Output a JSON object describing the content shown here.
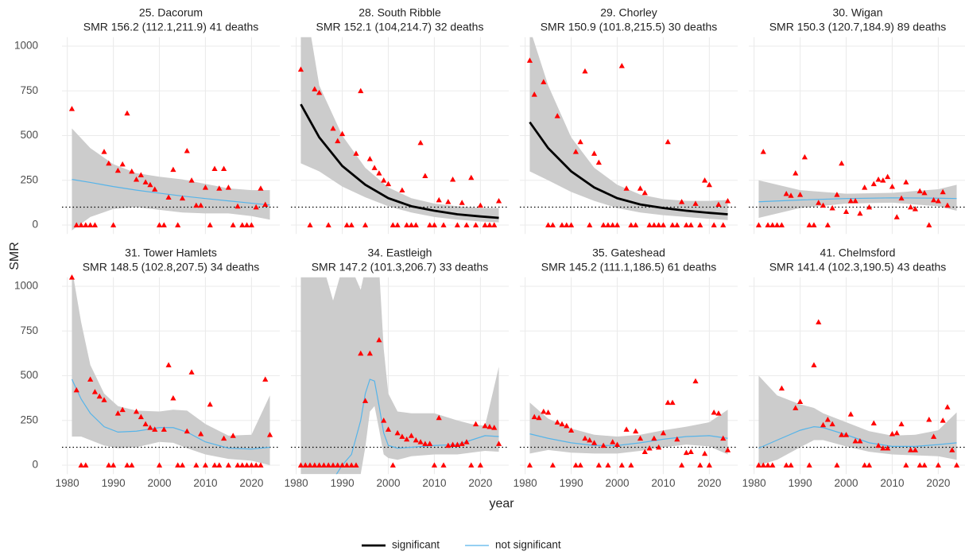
{
  "axes": {
    "xlabel": "year",
    "ylabel": "SMR",
    "xlim": [
      1978.85,
      2026.15
    ],
    "ylim": [
      -50,
      1050
    ],
    "xticks": [
      1980,
      1990,
      2000,
      2010,
      2020
    ],
    "yticks": [
      0,
      250,
      500,
      750,
      1000
    ],
    "reference_line": 100,
    "point_color": "#ff0000",
    "ribbon_color": "#cccccc",
    "grid_color": "#ebebeb"
  },
  "legend": [
    {
      "name": "significant",
      "color": "#000000"
    },
    {
      "name": "not significant",
      "color": "#56b4e9"
    }
  ],
  "chart_data": [
    {
      "type": "scatter",
      "title": "25. Dacorum",
      "subtitle": "SMR 156.2 (112.1,211.9) 41 deaths",
      "significant": false,
      "x": [
        1981,
        1982,
        1983,
        1984,
        1985,
        1986,
        1988,
        1989,
        1990,
        1991,
        1992,
        1993,
        1994,
        1995,
        1996,
        1997,
        1998,
        1999,
        2000,
        2001,
        2002,
        2003,
        2004,
        2005,
        2006,
        2007,
        2008,
        2009,
        2010,
        2011,
        2012,
        2013,
        2014,
        2015,
        2016,
        2017,
        2018,
        2019,
        2020,
        2021,
        2022,
        2023
      ],
      "values": [
        650,
        0,
        0,
        0,
        0,
        0,
        410,
        345,
        0,
        305,
        340,
        625,
        300,
        255,
        280,
        240,
        225,
        200,
        0,
        0,
        155,
        310,
        0,
        150,
        415,
        250,
        110,
        110,
        210,
        0,
        315,
        205,
        315,
        210,
        0,
        105,
        0,
        0,
        0,
        100,
        205,
        115
      ],
      "fit": {
        "x": [
          1981,
          1985,
          1990,
          1995,
          2000,
          2005,
          2010,
          2015,
          2020,
          2024
        ],
        "values": [
          255,
          238,
          215,
          195,
          178,
          162,
          148,
          135,
          122,
          112
        ],
        "upper": [
          540,
          430,
          340,
          290,
          270,
          255,
          230,
          205,
          195,
          195
        ],
        "lower": [
          -30,
          45,
          90,
          100,
          85,
          70,
          65,
          65,
          50,
          30
        ]
      }
    },
    {
      "type": "scatter",
      "title": "28. South Ribble",
      "subtitle": "SMR 152.1 (104,214.7) 32 deaths",
      "significant": true,
      "x": [
        1981,
        1983,
        1984,
        1985,
        1987,
        1988,
        1989,
        1990,
        1991,
        1992,
        1993,
        1994,
        1995,
        1996,
        1997,
        1998,
        1999,
        2000,
        2001,
        2002,
        2003,
        2004,
        2005,
        2006,
        2007,
        2008,
        2009,
        2010,
        2011,
        2012,
        2013,
        2014,
        2015,
        2016,
        2017,
        2018,
        2019,
        2020,
        2021,
        2022,
        2023,
        2024
      ],
      "values": [
        870,
        0,
        760,
        740,
        0,
        540,
        470,
        510,
        0,
        0,
        400,
        750,
        0,
        370,
        320,
        290,
        250,
        230,
        0,
        0,
        195,
        0,
        0,
        0,
        460,
        275,
        0,
        0,
        140,
        0,
        130,
        255,
        0,
        125,
        0,
        265,
        0,
        110,
        0,
        0,
        0,
        135
      ],
      "fit": {
        "x": [
          1981,
          1985,
          1990,
          1995,
          2000,
          2005,
          2010,
          2015,
          2020,
          2024
        ],
        "values": [
          675,
          490,
          330,
          225,
          150,
          105,
          80,
          60,
          48,
          40
        ],
        "upper": [
          1400,
          780,
          500,
          320,
          210,
          150,
          120,
          105,
          95,
          95
        ],
        "lower": [
          345,
          300,
          215,
          155,
          105,
          70,
          45,
          30,
          20,
          15
        ]
      }
    },
    {
      "type": "scatter",
      "title": "29. Chorley",
      "subtitle": "SMR 150.9 (101.8,215.5) 30 deaths",
      "significant": true,
      "x": [
        1981,
        1982,
        1984,
        1985,
        1986,
        1987,
        1988,
        1989,
        1990,
        1991,
        1992,
        1993,
        1994,
        1995,
        1996,
        1997,
        1998,
        1999,
        2000,
        2001,
        2002,
        2003,
        2004,
        2005,
        2006,
        2007,
        2008,
        2009,
        2010,
        2011,
        2012,
        2013,
        2014,
        2015,
        2016,
        2017,
        2018,
        2019,
        2020,
        2021,
        2022,
        2023,
        2024
      ],
      "values": [
        920,
        730,
        800,
        0,
        0,
        610,
        0,
        0,
        0,
        410,
        465,
        860,
        0,
        400,
        350,
        0,
        0,
        0,
        0,
        890,
        205,
        0,
        0,
        205,
        180,
        0,
        0,
        0,
        0,
        465,
        0,
        0,
        130,
        0,
        0,
        120,
        0,
        250,
        225,
        0,
        115,
        0,
        135
      ],
      "fit": {
        "x": [
          1981,
          1985,
          1990,
          1995,
          2000,
          2005,
          2010,
          2015,
          2020,
          2024
        ],
        "values": [
          575,
          430,
          300,
          210,
          150,
          115,
          95,
          80,
          68,
          60
        ],
        "upper": [
          1100,
          780,
          490,
          320,
          225,
          170,
          145,
          135,
          135,
          140
        ],
        "lower": [
          300,
          250,
          185,
          135,
          95,
          70,
          55,
          45,
          35,
          28
        ]
      }
    },
    {
      "type": "scatter",
      "title": "30. Wigan",
      "subtitle": "SMR 150.3 (120.7,184.9) 89 deaths",
      "significant": false,
      "x": [
        1981,
        1982,
        1983,
        1984,
        1985,
        1986,
        1987,
        1988,
        1989,
        1990,
        1991,
        1992,
        1993,
        1994,
        1995,
        1996,
        1997,
        1998,
        1999,
        2000,
        2001,
        2002,
        2003,
        2004,
        2005,
        2006,
        2007,
        2008,
        2009,
        2010,
        2011,
        2012,
        2013,
        2014,
        2015,
        2016,
        2017,
        2018,
        2019,
        2020,
        2021,
        2022
      ],
      "values": [
        0,
        410,
        0,
        0,
        0,
        0,
        175,
        165,
        290,
        170,
        380,
        0,
        0,
        125,
        110,
        0,
        95,
        170,
        345,
        75,
        135,
        135,
        65,
        210,
        100,
        230,
        255,
        250,
        270,
        215,
        45,
        150,
        240,
        100,
        90,
        190,
        180,
        0,
        140,
        135,
        185,
        110
      ],
      "fit": {
        "x": [
          1981,
          1990,
          2000,
          2010,
          2020,
          2024
        ],
        "values": [
          130,
          140,
          148,
          152,
          150,
          148
        ],
        "upper": [
          250,
          195,
          175,
          180,
          200,
          225
        ],
        "lower": [
          40,
          95,
          120,
          125,
          105,
          80
        ]
      }
    },
    {
      "type": "scatter",
      "title": "31. Tower Hamlets",
      "subtitle": "SMR 148.5 (102.8,207.5) 34 deaths",
      "significant": false,
      "x": [
        1981,
        1982,
        1983,
        1984,
        1985,
        1986,
        1987,
        1988,
        1989,
        1990,
        1991,
        1992,
        1993,
        1994,
        1995,
        1996,
        1997,
        1998,
        1999,
        2000,
        2001,
        2002,
        2003,
        2004,
        2005,
        2006,
        2007,
        2008,
        2009,
        2010,
        2011,
        2012,
        2013,
        2014,
        2015,
        2016,
        2017,
        2018,
        2019,
        2020,
        2021,
        2022,
        2023,
        2024
      ],
      "values": [
        1050,
        420,
        0,
        0,
        480,
        410,
        385,
        365,
        0,
        0,
        290,
        310,
        0,
        0,
        300,
        270,
        230,
        210,
        200,
        0,
        200,
        560,
        375,
        0,
        0,
        190,
        520,
        0,
        175,
        0,
        340,
        0,
        0,
        150,
        0,
        165,
        0,
        0,
        0,
        0,
        0,
        0,
        480,
        170
      ],
      "fit": {
        "x": [
          1981,
          1983,
          1985,
          1988,
          1991,
          1995,
          2000,
          2003,
          2006,
          2010,
          2015,
          2020,
          2024
        ],
        "values": [
          480,
          370,
          290,
          215,
          185,
          190,
          210,
          210,
          185,
          130,
          95,
          90,
          100
        ],
        "upper": [
          1100,
          800,
          560,
          400,
          330,
          305,
          300,
          310,
          305,
          230,
          165,
          170,
          390
        ],
        "lower": [
          160,
          160,
          140,
          110,
          95,
          100,
          130,
          125,
          95,
          60,
          35,
          25,
          0
        ]
      }
    },
    {
      "type": "scatter",
      "title": "34. Eastleigh",
      "subtitle": "SMR 147.2 (101.3,206.7) 33 deaths",
      "significant": false,
      "x": [
        1981,
        1982,
        1983,
        1984,
        1985,
        1986,
        1987,
        1988,
        1989,
        1990,
        1991,
        1992,
        1993,
        1994,
        1995,
        1996,
        1998,
        1999,
        2000,
        2001,
        2002,
        2003,
        2004,
        2005,
        2006,
        2007,
        2008,
        2009,
        2010,
        2011,
        2012,
        2013,
        2014,
        2015,
        2016,
        2017,
        2018,
        2019,
        2020,
        2021,
        2022,
        2023,
        2024
      ],
      "values": [
        0,
        0,
        0,
        0,
        0,
        0,
        0,
        0,
        0,
        0,
        0,
        0,
        0,
        625,
        360,
        625,
        700,
        250,
        200,
        0,
        180,
        160,
        145,
        165,
        140,
        130,
        120,
        120,
        0,
        265,
        0,
        110,
        115,
        115,
        120,
        130,
        0,
        230,
        0,
        220,
        215,
        210,
        120
      ],
      "fit": {
        "x": [
          1981,
          1986,
          1988,
          1990,
          1992,
          1994,
          1995,
          1996,
          1997,
          1998,
          1999,
          2000,
          2002,
          2005,
          2010,
          2015,
          2018,
          2021,
          2024
        ],
        "values": [
          -200,
          -150,
          -80,
          0,
          60,
          250,
          400,
          480,
          470,
          330,
          180,
          110,
          95,
          100,
          110,
          115,
          140,
          165,
          160
        ],
        "upper": [
          1100,
          1100,
          920,
          1100,
          1100,
          980,
          1100,
          1100,
          1100,
          1100,
          650,
          400,
          300,
          290,
          290,
          250,
          230,
          220,
          550
        ],
        "lower": [
          -50,
          -50,
          -50,
          -50,
          -50,
          -50,
          100,
          300,
          330,
          200,
          60,
          40,
          30,
          50,
          60,
          60,
          70,
          80,
          75
        ]
      }
    },
    {
      "type": "scatter",
      "title": "35. Gateshead",
      "subtitle": "SMR 145.2 (111.1,186.5) 61 deaths",
      "significant": false,
      "x": [
        1981,
        1982,
        1983,
        1984,
        1985,
        1986,
        1987,
        1988,
        1989,
        1990,
        1991,
        1992,
        1993,
        1994,
        1995,
        1996,
        1997,
        1998,
        1999,
        2000,
        2001,
        2002,
        2003,
        2004,
        2005,
        2006,
        2007,
        2008,
        2009,
        2010,
        2011,
        2012,
        2013,
        2014,
        2015,
        2016,
        2017,
        2018,
        2019,
        2020,
        2021,
        2022,
        2023,
        2024
      ],
      "values": [
        0,
        270,
        265,
        300,
        295,
        0,
        240,
        230,
        220,
        195,
        0,
        0,
        150,
        140,
        125,
        0,
        110,
        0,
        130,
        115,
        0,
        200,
        0,
        190,
        150,
        75,
        95,
        150,
        100,
        180,
        350,
        350,
        145,
        0,
        70,
        75,
        470,
        0,
        65,
        0,
        295,
        290,
        150,
        85
      ],
      "fit": {
        "x": [
          1981,
          1985,
          1990,
          1995,
          2000,
          2005,
          2010,
          2015,
          2020,
          2024
        ],
        "values": [
          175,
          150,
          125,
          110,
          110,
          125,
          145,
          160,
          165,
          150
        ],
        "upper": [
          350,
          260,
          205,
          170,
          160,
          170,
          195,
          215,
          240,
          310
        ],
        "lower": [
          65,
          85,
          70,
          65,
          65,
          80,
          100,
          115,
          105,
          60
        ]
      }
    },
    {
      "type": "scatter",
      "title": "41. Chelmsford",
      "subtitle": "SMR 141.4 (102.3,190.5) 43 deaths",
      "significant": false,
      "x": [
        1981,
        1982,
        1983,
        1984,
        1986,
        1987,
        1988,
        1989,
        1990,
        1992,
        1993,
        1994,
        1995,
        1996,
        1997,
        1998,
        1999,
        2000,
        2001,
        2002,
        2003,
        2004,
        2005,
        2006,
        2007,
        2008,
        2009,
        2010,
        2011,
        2012,
        2013,
        2014,
        2015,
        2016,
        2017,
        2018,
        2019,
        2020,
        2021,
        2022,
        2023,
        2024
      ],
      "values": [
        0,
        0,
        0,
        0,
        430,
        0,
        0,
        320,
        355,
        0,
        560,
        800,
        225,
        255,
        230,
        0,
        170,
        170,
        285,
        135,
        135,
        0,
        0,
        235,
        110,
        95,
        95,
        175,
        180,
        230,
        0,
        85,
        85,
        0,
        0,
        255,
        160,
        0,
        250,
        325,
        85,
        0
      ],
      "fit": {
        "x": [
          1981,
          1985,
          1990,
          1993,
          1995,
          2000,
          2005,
          2010,
          2015,
          2020,
          2024
        ],
        "values": [
          95,
          140,
          195,
          215,
          210,
          170,
          125,
          105,
          105,
          115,
          125
        ],
        "upper": [
          500,
          390,
          340,
          320,
          290,
          240,
          190,
          165,
          170,
          195,
          295
        ],
        "lower": [
          0,
          30,
          100,
          140,
          140,
          105,
          75,
          60,
          55,
          50,
          30
        ]
      }
    }
  ]
}
